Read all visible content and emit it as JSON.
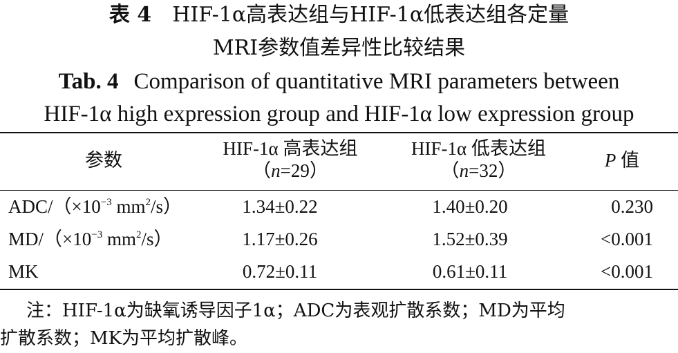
{
  "title": {
    "cn_tab": "表 4",
    "cn_line1": "HIF-1α高表达组与HIF-1α低表达组各定量",
    "cn_line2": "MRI参数值差异性比较结果",
    "en_tab": "Tab. 4",
    "en_line1": "Comparison of quantitative MRI parameters between",
    "en_line2": "HIF-1α high expression group and HIF-1α low expression group"
  },
  "table": {
    "headers": {
      "param": "参数",
      "high_label": "HIF-1α 高表达组",
      "high_n": "（n=29）",
      "low_label": "HIF-1α 低表达组",
      "low_n": "（n=32）",
      "p_italic": "P",
      "p_suffix": " 值"
    },
    "rows": [
      {
        "param_prefix": "ADC/（×10",
        "param_exp": "−3",
        "param_mid": " mm",
        "param_exp2": "2",
        "param_suffix": "/s）",
        "high": "1.34±0.22",
        "low": "1.40±0.20",
        "p": "0.230"
      },
      {
        "param_prefix": "MD/（×10",
        "param_exp": "−3",
        "param_mid": " mm",
        "param_exp2": "2",
        "param_suffix": "/s）",
        "high": "1.17±0.26",
        "low": "1.52±0.39",
        "p": "<0.001"
      },
      {
        "param_prefix": "MK",
        "param_exp": "",
        "param_mid": "",
        "param_exp2": "",
        "param_suffix": "",
        "high": "0.72±0.11",
        "low": "0.61±0.11",
        "p": "<0.001"
      }
    ]
  },
  "note": {
    "line1": "注：HIF-1α为缺氧诱导因子1α；ADC为表观扩散系数；MD为平均",
    "line2": "扩散系数；MK为平均扩散峰。"
  }
}
